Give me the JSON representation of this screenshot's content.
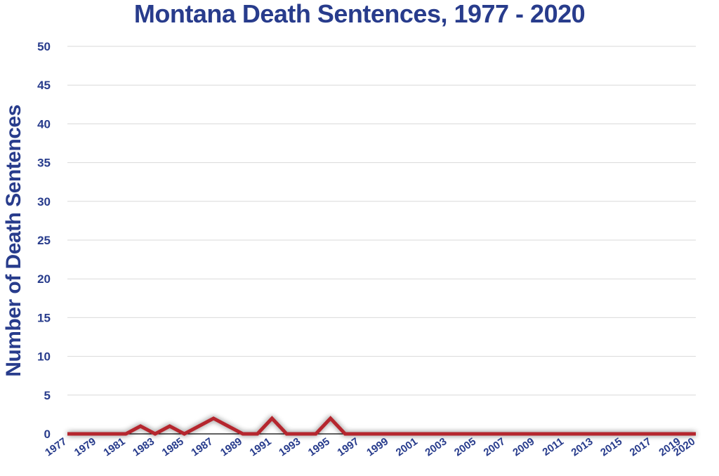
{
  "chart_data": {
    "type": "line",
    "title": "Montana Death Sentences, 1977 - 2020",
    "xlabel": "",
    "ylabel": "Number of Death Sentences",
    "x": [
      1977,
      1978,
      1979,
      1980,
      1981,
      1982,
      1983,
      1984,
      1985,
      1986,
      1987,
      1988,
      1989,
      1990,
      1991,
      1992,
      1993,
      1994,
      1995,
      1996,
      1997,
      1998,
      1999,
      2000,
      2001,
      2002,
      2003,
      2004,
      2005,
      2006,
      2007,
      2008,
      2009,
      2010,
      2011,
      2012,
      2013,
      2014,
      2015,
      2016,
      2017,
      2018,
      2019,
      2020
    ],
    "x_tick_labels": [
      "1977",
      "1979",
      "1981",
      "1983",
      "1985",
      "1987",
      "1989",
      "1991",
      "1993",
      "1995",
      "1997",
      "1999",
      "2001",
      "2003",
      "2005",
      "2007",
      "2009",
      "2011",
      "2013",
      "2015",
      "2017",
      "2019",
      "2020"
    ],
    "series": [
      {
        "values": [
          0,
          0,
          0,
          0,
          0,
          1,
          0,
          1,
          0,
          1,
          2,
          1,
          0,
          0,
          2,
          0,
          0,
          0,
          2,
          0,
          0,
          0,
          0,
          0,
          0,
          0,
          0,
          0,
          0,
          0,
          0,
          0,
          0,
          0,
          0,
          0,
          0,
          0,
          0,
          0,
          0,
          0,
          0,
          0
        ]
      }
    ],
    "ylim": [
      0,
      50
    ],
    "yticks": [
      0,
      5,
      10,
      15,
      20,
      25,
      30,
      35,
      40,
      45,
      50
    ],
    "grid": true,
    "legend": "none",
    "colors": {
      "line": "#b5272d",
      "text": "#283c8c",
      "grid": "#d9d9d9",
      "axis": "#000000"
    }
  }
}
